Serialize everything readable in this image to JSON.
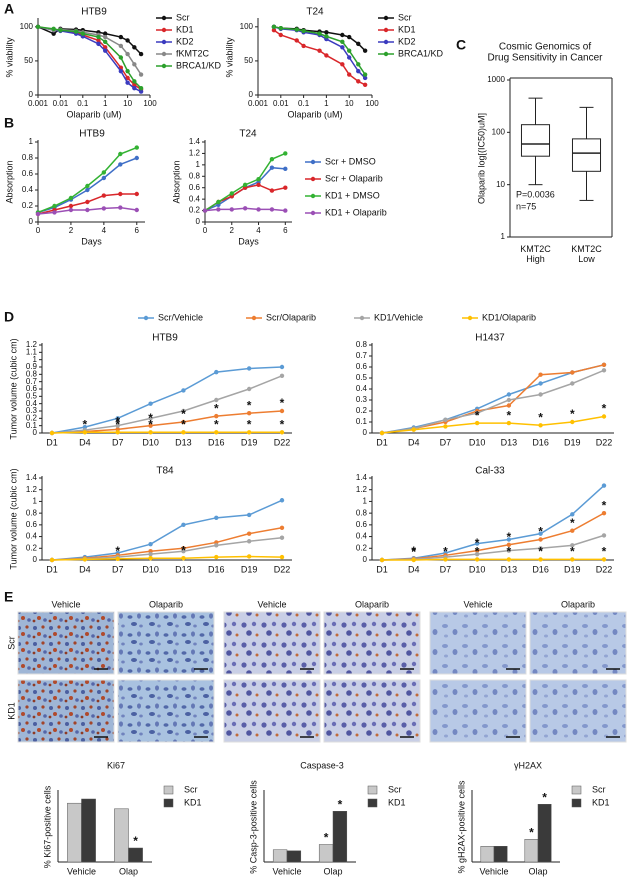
{
  "panels": [
    "A",
    "B",
    "C",
    "D",
    "E"
  ],
  "micrographs": {
    "rows": [
      "Scr",
      "KD1"
    ],
    "stains": [
      {
        "name": "Ki67",
        "columns": [
          "Vehicle",
          "Olaparib"
        ]
      },
      {
        "name": "Caspase-3",
        "columns": [
          "Vehicle",
          "Olaparib"
        ]
      },
      {
        "name": "γH2AX",
        "columns": [
          "Vehicle",
          "Olaparib"
        ]
      }
    ]
  },
  "chart_data": [
    {
      "type": "line",
      "title": "HTB9",
      "x_label": "Olaparib (uM)",
      "y_label": "% viability",
      "xscale": "log",
      "x": [
        0.001,
        0.005,
        0.01,
        0.05,
        0.1,
        0.5,
        1,
        5,
        10,
        20,
        40
      ],
      "xlim": [
        0.001,
        100
      ],
      "xticks": [
        0.001,
        0.01,
        0.1,
        1,
        10,
        100
      ],
      "ylim": [
        0,
        110
      ],
      "yticks": [
        0,
        50,
        100
      ],
      "series": [
        {
          "name": "Scr",
          "color": "#111111",
          "values": [
            100,
            90,
            97,
            96,
            95,
            92,
            90,
            85,
            80,
            70,
            60
          ]
        },
        {
          "name": "KD1",
          "color": "#d9262a",
          "values": [
            100,
            96,
            95,
            92,
            88,
            80,
            70,
            40,
            25,
            15,
            8
          ]
        },
        {
          "name": "KD2",
          "color": "#3b3bbf",
          "values": [
            100,
            95,
            94,
            90,
            86,
            75,
            65,
            35,
            18,
            10,
            5
          ]
        },
        {
          "name": "fKMT2C",
          "color": "#888888",
          "values": [
            100,
            95,
            96,
            94,
            92,
            88,
            85,
            72,
            60,
            45,
            30
          ]
        },
        {
          "name": "BRCA1/KD",
          "color": "#2ca02c",
          "values": [
            100,
            97,
            95,
            93,
            90,
            85,
            78,
            55,
            35,
            20,
            10
          ]
        }
      ]
    },
    {
      "type": "line",
      "title": "T24",
      "x_label": "Olaparib (uM)",
      "y_label": "% viability",
      "xscale": "log",
      "x": [
        0.005,
        0.01,
        0.05,
        0.1,
        0.5,
        1,
        5,
        10,
        25,
        50
      ],
      "xlim": [
        0.001,
        100
      ],
      "xticks": [
        0.001,
        0.01,
        0.1,
        1,
        10,
        100
      ],
      "ylim": [
        0,
        110
      ],
      "yticks": [
        0,
        50,
        100
      ],
      "series": [
        {
          "name": "Scr",
          "color": "#111111",
          "values": [
            100,
            98,
            97,
            95,
            93,
            92,
            88,
            85,
            75,
            65
          ]
        },
        {
          "name": "KD1",
          "color": "#d9262a",
          "values": [
            95,
            88,
            80,
            72,
            65,
            58,
            45,
            30,
            20,
            15
          ]
        },
        {
          "name": "KD2",
          "color": "#3b3bbf",
          "values": [
            100,
            97,
            95,
            92,
            88,
            82,
            70,
            55,
            35,
            25
          ]
        },
        {
          "name": "BRCA1/KD",
          "color": "#2ca02c",
          "values": [
            100,
            98,
            96,
            94,
            90,
            86,
            78,
            65,
            45,
            30
          ]
        }
      ]
    },
    {
      "type": "line",
      "title": "HTB9",
      "x_label": "Days",
      "y_label": "Absorption",
      "x": [
        0,
        1,
        2,
        3,
        4,
        5,
        6
      ],
      "xlim": [
        0,
        6.5
      ],
      "xticks": [
        0,
        2,
        4,
        6
      ],
      "ylim": [
        0,
        1
      ],
      "yticks": [
        0,
        0.2,
        0.4,
        0.6,
        0.8,
        1
      ],
      "series": [
        {
          "color": "#3f6fc7",
          "values": [
            0.12,
            0.18,
            0.28,
            0.4,
            0.55,
            0.72,
            0.8
          ]
        },
        {
          "color": "#d9262a",
          "values": [
            0.1,
            0.15,
            0.2,
            0.25,
            0.33,
            0.35,
            0.35
          ]
        },
        {
          "color": "#33b233",
          "values": [
            0.12,
            0.2,
            0.3,
            0.45,
            0.62,
            0.85,
            0.93
          ]
        },
        {
          "color": "#9b4fb5",
          "values": [
            0.1,
            0.12,
            0.15,
            0.15,
            0.17,
            0.18,
            0.15
          ]
        }
      ]
    },
    {
      "type": "line",
      "title": "T24",
      "x_label": "Days",
      "y_label": "Absorption",
      "x": [
        0,
        1,
        2,
        3,
        4,
        5,
        6
      ],
      "xlim": [
        0,
        6.5
      ],
      "xticks": [
        0,
        2,
        4,
        6
      ],
      "ylim": [
        0,
        1.4
      ],
      "yticks": [
        0,
        0.2,
        0.4,
        0.6,
        0.8,
        1,
        1.2,
        1.4
      ],
      "series": [
        {
          "name": "Scr + DMSO",
          "color": "#3f6fc7",
          "values": [
            0.2,
            0.3,
            0.45,
            0.6,
            0.7,
            0.95,
            0.93
          ]
        },
        {
          "name": "Scr + Olaparib",
          "color": "#d9262a",
          "values": [
            0.2,
            0.35,
            0.45,
            0.6,
            0.65,
            0.55,
            0.6
          ]
        },
        {
          "name": "KD1 + DMSO",
          "color": "#33b233",
          "values": [
            0.2,
            0.35,
            0.5,
            0.65,
            0.75,
            1.1,
            1.2
          ]
        },
        {
          "name": "KD1 + Olaparib",
          "color": "#9b4fb5",
          "values": [
            0.2,
            0.22,
            0.22,
            0.24,
            0.22,
            0.22,
            0.2
          ]
        }
      ]
    },
    {
      "type": "box",
      "title": "Cosmic Genomics of\nDrug Sensitivity in Cancer",
      "y_label": "Olaparib log[(IC50)uM]",
      "yscale": "log",
      "ylim": [
        1,
        1000
      ],
      "yticks": [
        1,
        10,
        100,
        1000
      ],
      "categories": [
        "KMT2C\nHigh",
        "KMT2C\nLow"
      ],
      "boxes": [
        {
          "min": 10,
          "q1": 35,
          "median": 60,
          "q3": 140,
          "max": 450
        },
        {
          "min": 5,
          "q1": 18,
          "median": 40,
          "q3": 75,
          "max": 300
        }
      ],
      "annotations": [
        "P=0.0036",
        "n=75"
      ]
    },
    {
      "type": "line",
      "title": "HTB9",
      "y_label": "Tumor volume (cubic cm)",
      "categories": [
        "D1",
        "D4",
        "D7",
        "D10",
        "D13",
        "D16",
        "D19",
        "D22"
      ],
      "ylim": [
        0,
        1.2
      ],
      "yticks": [
        0,
        0.1,
        0.2,
        0.3,
        0.4,
        0.5,
        0.6,
        0.7,
        0.8,
        0.9,
        1,
        1.1,
        1.2
      ],
      "series": [
        {
          "name": "Scr/Vehicle",
          "color": "#5b9bd5",
          "values": [
            0,
            0.08,
            0.2,
            0.4,
            0.58,
            0.83,
            0.88,
            0.9
          ]
        },
        {
          "name": "Scr/Olaparib",
          "color": "#ed7d31",
          "values": [
            0,
            0.02,
            0.05,
            0.1,
            0.15,
            0.23,
            0.27,
            0.3
          ]
        },
        {
          "name": "KD1/Vehicle",
          "color": "#a5a5a5",
          "values": [
            0,
            0.04,
            0.1,
            0.2,
            0.3,
            0.45,
            0.6,
            0.78
          ]
        },
        {
          "name": "KD1/Olaparib",
          "color": "#ffc000",
          "values": [
            0,
            0.01,
            0.01,
            0.01,
            0.01,
            0.01,
            0.01,
            0.01
          ]
        }
      ],
      "annotations": [
        {
          "text": "*",
          "series": "KD1/Olaparib",
          "category": "D4"
        },
        {
          "text": "*",
          "series": "KD1/Olaparib",
          "category": "D7"
        },
        {
          "text": "*",
          "series": "KD1/Olaparib",
          "category": "D10"
        },
        {
          "text": "*",
          "series": "KD1/Olaparib",
          "category": "D13"
        },
        {
          "text": "*",
          "series": "KD1/Olaparib",
          "category": "D16"
        },
        {
          "text": "*",
          "series": "KD1/Olaparib",
          "category": "D19"
        },
        {
          "text": "*",
          "series": "KD1/Olaparib",
          "category": "D22"
        },
        {
          "text": "*",
          "series": "Scr/Olaparib",
          "category": "D7"
        },
        {
          "text": "*",
          "series": "Scr/Olaparib",
          "category": "D10"
        },
        {
          "text": "*",
          "series": "Scr/Olaparib",
          "category": "D13"
        },
        {
          "text": "*",
          "series": "Scr/Olaparib",
          "category": "D16"
        },
        {
          "text": "*",
          "series": "Scr/Olaparib",
          "category": "D19"
        },
        {
          "text": "*",
          "series": "Scr/Olaparib",
          "category": "D22"
        }
      ]
    },
    {
      "type": "line",
      "title": "H1437",
      "categories": [
        "D1",
        "D4",
        "D7",
        "D10",
        "D13",
        "D16",
        "D19",
        "D22"
      ],
      "ylim": [
        0,
        0.8
      ],
      "yticks": [
        0,
        0.1,
        0.2,
        0.3,
        0.4,
        0.5,
        0.6,
        0.7,
        0.8
      ],
      "series": [
        {
          "color": "#5b9bd5",
          "values": [
            0,
            0.05,
            0.12,
            0.22,
            0.35,
            0.45,
            0.55,
            0.62
          ]
        },
        {
          "color": "#ed7d31",
          "values": [
            0,
            0.04,
            0.1,
            0.2,
            0.25,
            0.53,
            0.55,
            0.62
          ]
        },
        {
          "color": "#a5a5a5",
          "values": [
            0,
            0.04,
            0.12,
            0.18,
            0.3,
            0.35,
            0.45,
            0.57
          ]
        },
        {
          "color": "#ffc000",
          "values": [
            0,
            0.03,
            0.06,
            0.09,
            0.09,
            0.07,
            0.1,
            0.15
          ]
        }
      ],
      "annotations": [
        {
          "text": "*",
          "series": 3,
          "category": "D10"
        },
        {
          "text": "*",
          "series": 3,
          "category": "D13"
        },
        {
          "text": "*",
          "series": 3,
          "category": "D16"
        },
        {
          "text": "*",
          "series": 3,
          "category": "D19"
        },
        {
          "text": "*",
          "series": 3,
          "category": "D22"
        }
      ]
    },
    {
      "type": "line",
      "title": "T84",
      "y_label": "Tumor volume (cubic cm)",
      "categories": [
        "D1",
        "D4",
        "D7",
        "D10",
        "D13",
        "D16",
        "D19",
        "D22"
      ],
      "ylim": [
        0,
        1.4
      ],
      "yticks": [
        0,
        0.2,
        0.4,
        0.6,
        0.8,
        1,
        1.2,
        1.4
      ],
      "series": [
        {
          "color": "#5b9bd5",
          "values": [
            0,
            0.05,
            0.12,
            0.27,
            0.6,
            0.72,
            0.77,
            1.02
          ]
        },
        {
          "color": "#ed7d31",
          "values": [
            0,
            0.03,
            0.08,
            0.15,
            0.2,
            0.3,
            0.45,
            0.55
          ]
        },
        {
          "color": "#a5a5a5",
          "values": [
            0,
            0.02,
            0.05,
            0.1,
            0.15,
            0.25,
            0.32,
            0.38
          ]
        },
        {
          "color": "#ffc000",
          "values": [
            0,
            0.01,
            0.02,
            0.03,
            0.03,
            0.05,
            0.06,
            0.05
          ]
        }
      ],
      "annotations": [
        {
          "text": "*",
          "series": 3,
          "category": "D7"
        },
        {
          "text": "*",
          "series": 3,
          "category": "D13"
        }
      ]
    },
    {
      "type": "line",
      "title": "Cal-33",
      "categories": [
        "D1",
        "D4",
        "D7",
        "D10",
        "D13",
        "D16",
        "D19",
        "D22"
      ],
      "ylim": [
        0,
        1.4
      ],
      "yticks": [
        0,
        0.2,
        0.4,
        0.6,
        0.8,
        1,
        1.2,
        1.4
      ],
      "series": [
        {
          "color": "#5b9bd5",
          "values": [
            0,
            0.03,
            0.12,
            0.28,
            0.35,
            0.45,
            0.78,
            1.27
          ]
        },
        {
          "color": "#ed7d31",
          "values": [
            0,
            0.02,
            0.08,
            0.16,
            0.26,
            0.35,
            0.5,
            0.8
          ]
        },
        {
          "color": "#a5a5a5",
          "values": [
            0,
            0.01,
            0.05,
            0.1,
            0.16,
            0.2,
            0.25,
            0.42
          ]
        },
        {
          "color": "#ffc000",
          "values": [
            0,
            0,
            0.01,
            0.01,
            0.01,
            0.01,
            0.01,
            0.01
          ]
        }
      ],
      "annotations": [
        {
          "text": "*",
          "series": 3,
          "category": "D4"
        },
        {
          "text": "*",
          "series": 3,
          "category": "D7"
        },
        {
          "text": "*",
          "series": 3,
          "category": "D10"
        },
        {
          "text": "*",
          "series": 3,
          "category": "D13"
        },
        {
          "text": "*",
          "series": 3,
          "category": "D16"
        },
        {
          "text": "*",
          "series": 3,
          "category": "D19"
        },
        {
          "text": "*",
          "series": 3,
          "category": "D22"
        },
        {
          "text": "*",
          "series": 1,
          "category": "D4"
        },
        {
          "text": "*",
          "series": 1,
          "category": "D10"
        },
        {
          "text": "*",
          "series": 1,
          "category": "D13"
        },
        {
          "text": "*",
          "series": 1,
          "category": "D16"
        },
        {
          "text": "*",
          "series": 1,
          "category": "D19"
        },
        {
          "text": "*",
          "series": 1,
          "category": "D22"
        }
      ]
    },
    {
      "type": "bar",
      "y_label": "% Ki67-positive cells",
      "categories": [
        "Vehicle",
        "Olap"
      ],
      "ylim": [
        0,
        25
      ],
      "series": [
        {
          "name": "Scr",
          "color": "#c8c8c8",
          "values": [
            21,
            19
          ]
        },
        {
          "name": "KD1",
          "color": "#3a3a3a",
          "values": [
            22.5,
            5
          ]
        }
      ],
      "annotations": [
        {
          "text": "*",
          "series": "KD1",
          "category": "Olap"
        }
      ]
    },
    {
      "type": "bar",
      "y_label": "% Casp-3-positive cells",
      "categories": [
        "Vehicle",
        "Olap"
      ],
      "ylim": [
        0,
        20
      ],
      "series": [
        {
          "name": "Scr",
          "color": "#c8c8c8",
          "values": [
            3.5,
            5
          ]
        },
        {
          "name": "KD1",
          "color": "#3a3a3a",
          "values": [
            3.2,
            14.5
          ]
        }
      ],
      "annotations": [
        {
          "text": "*",
          "series": "Scr",
          "category": "Olap"
        },
        {
          "text": "*",
          "series": "KD1",
          "category": "Olap"
        }
      ]
    },
    {
      "type": "bar",
      "y_label": "% gH2AX-positive cells",
      "categories": [
        "Vehicle",
        "Olap"
      ],
      "ylim": [
        0,
        20
      ],
      "series": [
        {
          "name": "Scr",
          "color": "#c8c8c8",
          "values": [
            4.5,
            6.5
          ]
        },
        {
          "name": "KD1",
          "color": "#3a3a3a",
          "values": [
            4.5,
            16.5
          ]
        }
      ],
      "annotations": [
        {
          "text": "*",
          "series": "Scr",
          "category": "Olap"
        },
        {
          "text": "*",
          "series": "KD1",
          "category": "Olap"
        }
      ]
    }
  ]
}
